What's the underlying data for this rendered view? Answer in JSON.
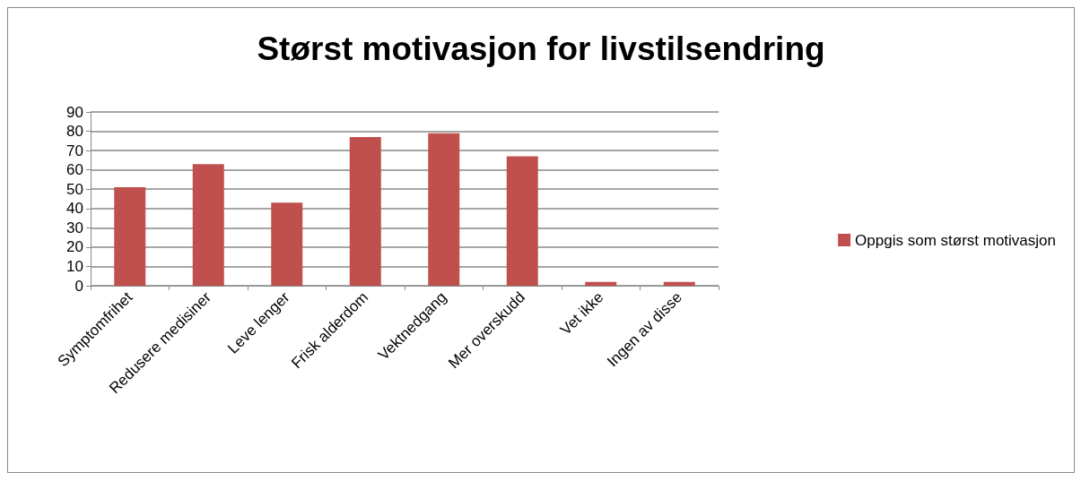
{
  "chart_data": {
    "type": "bar",
    "title": "Størst motivasjon for livstilsendring",
    "categories": [
      "Symptomfrihet",
      "Redusere medisiner",
      "Leve lenger",
      "Frisk alderdom",
      "Vektnedgang",
      "Mer overskudd",
      "Vet ikke",
      "Ingen av disse"
    ],
    "series": [
      {
        "name": "Oppgis som størst motivasjon",
        "color": "#c0504d",
        "values": [
          51,
          63,
          43,
          77,
          79,
          67,
          2,
          2
        ]
      }
    ],
    "ylim": [
      0,
      90
    ],
    "yticks": [
      0,
      10,
      20,
      30,
      40,
      50,
      60,
      70,
      80,
      90
    ],
    "grid": "y",
    "legend": "right"
  }
}
